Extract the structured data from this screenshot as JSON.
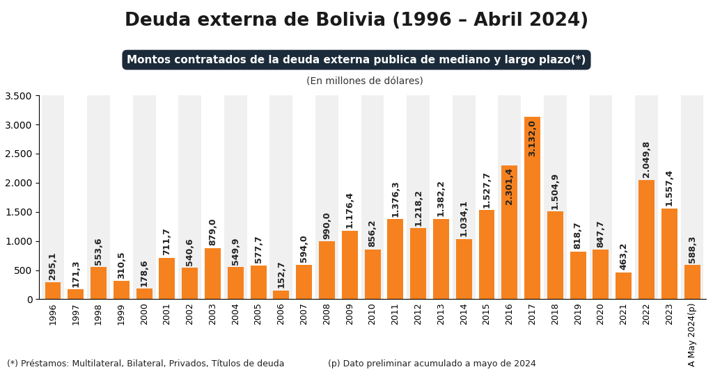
{
  "chart_data": {
    "type": "bar",
    "title": "Deuda externa de Bolivia (1996 – Abril 2024)",
    "subtitle": "Montos contratados de la deuda externa publica de mediano y largo plazo(*)",
    "y_label": "(En millones de dólares)",
    "notes": [
      "(*) Préstamos: Multilateral, Bilateral, Privados, Títulos de deuda",
      "(p) Dato preliminar acumulado a mayo de 2024"
    ],
    "categories": [
      "1996",
      "1997",
      "1998",
      "1999",
      "2000",
      "2001",
      "2002",
      "2003",
      "2004",
      "2005",
      "2006",
      "2007",
      "2008",
      "2009",
      "2010",
      "2011",
      "2012",
      "2013",
      "2014",
      "2015",
      "2016",
      "2017",
      "2018",
      "2019",
      "2020",
      "2021",
      "2022",
      "2023",
      "A May 2024(p)"
    ],
    "values": [
      295.1,
      171.3,
      553.6,
      310.5,
      178.6,
      711.7,
      540.6,
      879.0,
      549.9,
      577.7,
      152.7,
      594.0,
      990.0,
      1176.4,
      856.2,
      1376.3,
      1218.2,
      1382.2,
      1034.1,
      1527.7,
      2301.4,
      3132.0,
      1504.9,
      818.7,
      847.7,
      463.2,
      2049.8,
      1557.4,
      588.3
    ],
    "value_labels": [
      "295,1",
      "171,3",
      "553,6",
      "310,5",
      "178,6",
      "711,7",
      "540,6",
      "879,0",
      "549,9",
      "577,7",
      "152,7",
      "594,0",
      "990,0",
      "1.176,4",
      "856,2",
      "1.376,3",
      "1.218,2",
      "1.382,2",
      "1.034,1",
      "1.527,7",
      "2.301,4",
      "3.132,0",
      "1.504,9",
      "818,7",
      "847,7",
      "463,2",
      "2.049,8",
      "1.557,4",
      "588,3"
    ],
    "color": "#f5821f",
    "ylim": [
      0,
      3500
    ],
    "yticks": [
      0,
      500,
      {
        "value": 1000,
        "label": "1.000"
      },
      {
        "value": 1500,
        "label": "1.500"
      },
      {
        "value": 2000,
        "label": "2.000"
      },
      {
        "value": 2500,
        "label": "2.500"
      },
      {
        "value": 3000,
        "label": "3.000"
      },
      {
        "value": 3500,
        "label": "3.500"
      }
    ],
    "grid": false,
    "data_labels": true
  }
}
